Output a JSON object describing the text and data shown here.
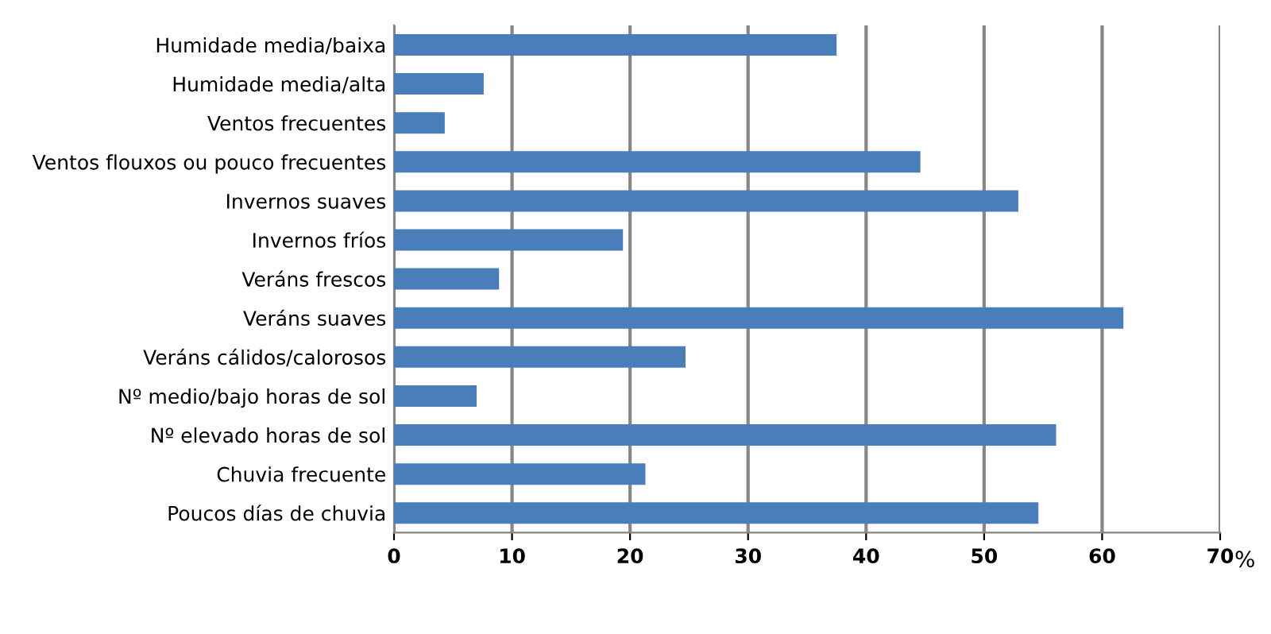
{
  "chart_data": {
    "type": "bar",
    "orientation": "horizontal",
    "categories": [
      "Humidade media/baixa",
      "Humidade media/alta",
      "Ventos frecuentes",
      "Ventos flouxos ou pouco frecuentes",
      "Invernos suaves",
      "Invernos fríos",
      "Veráns frescos",
      "Veráns suaves",
      "Veráns cálidos/calorosos",
      "Nº medio/bajo horas de sol",
      "Nº elevado horas de sol",
      "Chuvia frecuente",
      "Poucos días de chuvia"
    ],
    "values": [
      37.5,
      7.6,
      4.3,
      44.6,
      52.9,
      19.4,
      8.9,
      61.8,
      24.7,
      7.0,
      56.1,
      21.3,
      54.6
    ],
    "color": "#4a7ebb",
    "xlim": [
      0,
      70
    ],
    "xticks": [
      0,
      10,
      20,
      30,
      40,
      50,
      60,
      70
    ],
    "xlabel": "%",
    "grid": "x"
  }
}
